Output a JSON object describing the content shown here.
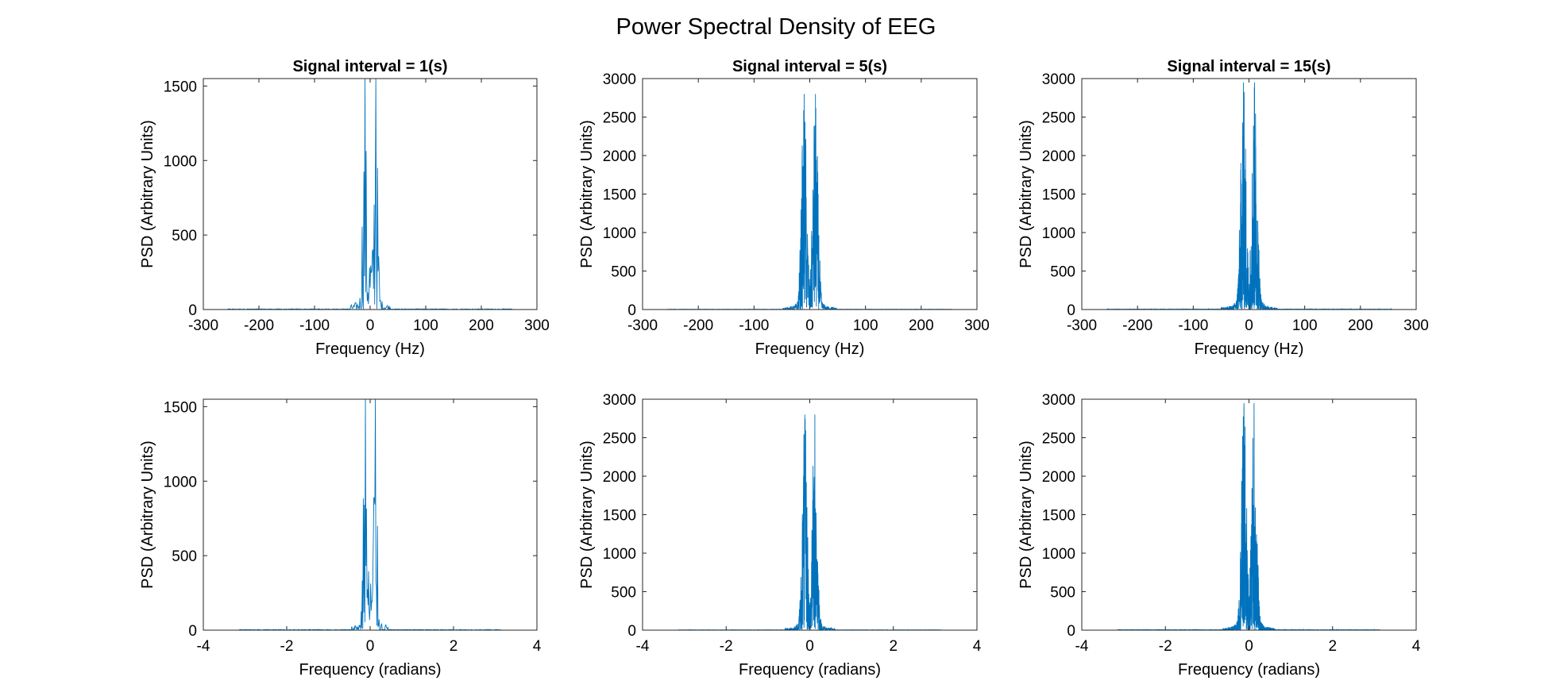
{
  "figure_title": "Power Spectral Density of EEG",
  "colors": {
    "line": "#0072BD",
    "axes": "#262626",
    "background": "#ffffff"
  },
  "chart_data": [
    {
      "type": "line",
      "title": "Signal interval = 1(s)",
      "xlabel": "Frequency (Hz)",
      "ylabel": "PSD (Arbitrary Units)",
      "xlim": [
        -300,
        300
      ],
      "ylim": [
        0,
        1550
      ],
      "xticks": [
        -300,
        -200,
        -100,
        0,
        100,
        200,
        300
      ],
      "yticks": [
        0,
        500,
        1000,
        1500
      ],
      "span": 256,
      "peak_pos": 10,
      "peak_val": 1550,
      "mid_val": 480,
      "spread": 30,
      "density": "sparse",
      "grid": false,
      "box": true
    },
    {
      "type": "line",
      "title": "Signal interval = 5(s)",
      "xlabel": "Frequency (Hz)",
      "ylabel": "PSD (Arbitrary Units)",
      "xlim": [
        -300,
        300
      ],
      "ylim": [
        0,
        3000
      ],
      "xticks": [
        -300,
        -200,
        -100,
        0,
        100,
        200,
        300
      ],
      "yticks": [
        0,
        500,
        1000,
        1500,
        2000,
        2500,
        3000
      ],
      "span": 256,
      "peak_pos": 10,
      "peak_val": 2800,
      "mid_val": 400,
      "spread": 40,
      "density": "medium",
      "grid": false,
      "box": true
    },
    {
      "type": "line",
      "title": "Signal interval = 15(s)",
      "xlabel": "Frequency (Hz)",
      "ylabel": "PSD (Arbitrary Units)",
      "xlim": [
        -300,
        300
      ],
      "ylim": [
        0,
        3000
      ],
      "xticks": [
        -300,
        -200,
        -100,
        0,
        100,
        200,
        300
      ],
      "yticks": [
        0,
        500,
        1000,
        1500,
        2000,
        2500,
        3000
      ],
      "span": 256,
      "peak_pos": 10,
      "peak_val": 2950,
      "mid_val": 420,
      "spread": 42,
      "density": "dense",
      "grid": false,
      "box": true
    },
    {
      "type": "line",
      "title": "",
      "xlabel": "Frequency (radians)",
      "ylabel": "PSD (Arbitrary Units)",
      "xlim": [
        -4,
        4
      ],
      "ylim": [
        0,
        1550
      ],
      "xticks": [
        -4,
        -2,
        0,
        2,
        4
      ],
      "yticks": [
        0,
        500,
        1000,
        1500
      ],
      "span": 3.14159,
      "peak_pos": 0.12,
      "peak_val": 1550,
      "mid_val": 480,
      "spread": 0.37,
      "density": "sparse",
      "grid": false,
      "box": true
    },
    {
      "type": "line",
      "title": "",
      "xlabel": "Frequency (radians)",
      "ylabel": "PSD (Arbitrary Units)",
      "xlim": [
        -4,
        4
      ],
      "ylim": [
        0,
        3000
      ],
      "xticks": [
        -4,
        -2,
        0,
        2,
        4
      ],
      "yticks": [
        0,
        500,
        1000,
        1500,
        2000,
        2500,
        3000
      ],
      "span": 3.14159,
      "peak_pos": 0.12,
      "peak_val": 2800,
      "mid_val": 400,
      "spread": 0.5,
      "density": "medium",
      "grid": false,
      "box": true
    },
    {
      "type": "line",
      "title": "",
      "xlabel": "Frequency (radians)",
      "ylabel": "PSD (Arbitrary Units)",
      "xlim": [
        -4,
        4
      ],
      "ylim": [
        0,
        3000
      ],
      "xticks": [
        -4,
        -2,
        0,
        2,
        4
      ],
      "yticks": [
        0,
        500,
        1000,
        1500,
        2000,
        2500,
        3000
      ],
      "span": 3.14159,
      "peak_pos": 0.12,
      "peak_val": 2950,
      "mid_val": 420,
      "spread": 0.52,
      "density": "dense",
      "grid": false,
      "box": true
    }
  ]
}
